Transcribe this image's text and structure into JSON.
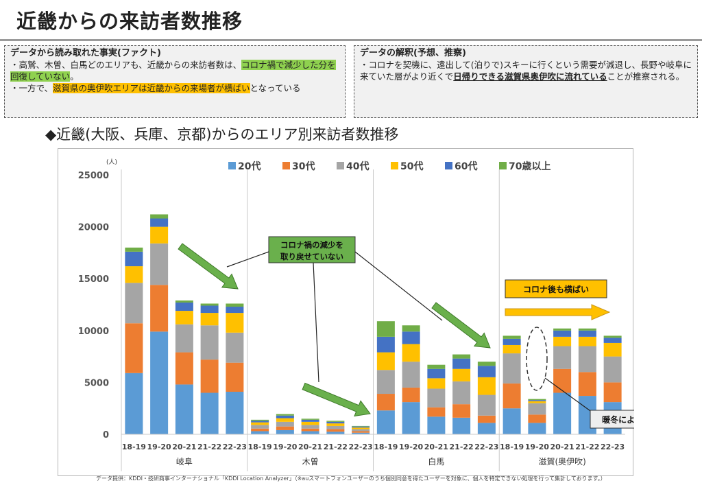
{
  "slide": {
    "title": "近畿からの来訪者数推移",
    "subtitle": "◆近畿(大阪、兵庫、京都)からのエリア別来訪者数推移",
    "footnote": "データ提供：KDDI・技研商事インターナショナル「KDDI Location Analyzer」（※auスマートフォンユーザーのうち個別同意を得たユーザーを対象に、個人を特定できない処理を行って集計しております。）"
  },
  "fact_box": {
    "heading": "データから読み取れた事実(ファクト)",
    "line1_a": "・高鷲、木曽、白馬どのエリアも、近畿からの来訪者数は、",
    "line1_hl": "コロナ禍で減少した分を回復していない",
    "line1_b": "。",
    "line2_a": "・一方で、",
    "line2_hl": "滋賀県の奥伊吹エリアは近畿からの来場者が横ばい",
    "line2_b": "となっている"
  },
  "interp_box": {
    "heading": "データの解釈(予想、推察)",
    "text_a": "・コロナを契機に、遠出して(泊りで)スキーに行くという需要が減退し、長野や岐阜に来ていた層がより近くで",
    "text_ul": "日帰りできる滋賀県奥伊吹に流れている",
    "text_b": "ことが推察される。"
  },
  "chart_data": {
    "type": "bar",
    "stacked": true,
    "yunit": "(人)",
    "ylim": [
      0,
      25000
    ],
    "yticks": [
      "0",
      "5000",
      "10000",
      "15000",
      "20000",
      "25000"
    ],
    "grid": false,
    "legend_position": "top",
    "series": [
      {
        "name": "20代",
        "color": "#5b9bd5"
      },
      {
        "name": "30代",
        "color": "#ed7d31"
      },
      {
        "name": "40代",
        "color": "#a5a5a5"
      },
      {
        "name": "50代",
        "color": "#ffc000"
      },
      {
        "name": "60代",
        "color": "#4472c4"
      },
      {
        "name": "70歳以上",
        "color": "#70ad47"
      }
    ],
    "groups": [
      {
        "name": "岐阜",
        "categories": [
          "18-19",
          "19-20",
          "20-21",
          "21-22",
          "22-23"
        ],
        "values": [
          [
            5900,
            4800,
            3900,
            1600,
            1400,
            400
          ],
          [
            9900,
            4500,
            4000,
            1600,
            800,
            400
          ],
          [
            4800,
            3100,
            2700,
            1300,
            800,
            200
          ],
          [
            4000,
            3200,
            3300,
            1200,
            700,
            200
          ],
          [
            4100,
            2800,
            2900,
            1900,
            600,
            300
          ]
        ]
      },
      {
        "name": "木曽",
        "categories": [
          "18-19",
          "19-20",
          "20-21",
          "21-22",
          "22-23"
        ],
        "values": [
          [
            300,
            250,
            350,
            250,
            150,
            100
          ],
          [
            400,
            350,
            450,
            350,
            250,
            150
          ],
          [
            300,
            250,
            350,
            300,
            200,
            100
          ],
          [
            250,
            250,
            300,
            250,
            150,
            100
          ],
          [
            150,
            150,
            200,
            150,
            100,
            50
          ]
        ]
      },
      {
        "name": "白馬",
        "categories": [
          "18-19",
          "19-20",
          "20-21",
          "21-22",
          "22-23"
        ],
        "values": [
          [
            2300,
            1600,
            2300,
            1700,
            1500,
            1500
          ],
          [
            3100,
            1400,
            2500,
            1700,
            1200,
            600
          ],
          [
            1700,
            900,
            1800,
            1000,
            900,
            400
          ],
          [
            1600,
            1300,
            2200,
            1200,
            1000,
            400
          ],
          [
            1100,
            700,
            2000,
            1700,
            1100,
            400
          ]
        ]
      },
      {
        "name": "滋賀(奥伊吹)",
        "categories": [
          "18-19",
          "19-20",
          "20-21",
          "21-22",
          "22-23"
        ],
        "values": [
          [
            2500,
            2400,
            2900,
            800,
            600,
            300
          ],
          [
            1100,
            800,
            1100,
            200,
            100,
            100
          ],
          [
            4000,
            2300,
            2200,
            900,
            600,
            200
          ],
          [
            3700,
            2300,
            2500,
            900,
            600,
            200
          ],
          [
            3100,
            1900,
            2500,
            1300,
            500,
            200
          ]
        ]
      }
    ],
    "annotations": {
      "callout_recover": "コロナ禍の減少を\n取り戻せていない",
      "callout_flat": "コロナ後も横ばい",
      "callout_snow": "暖冬による雪不足"
    }
  }
}
